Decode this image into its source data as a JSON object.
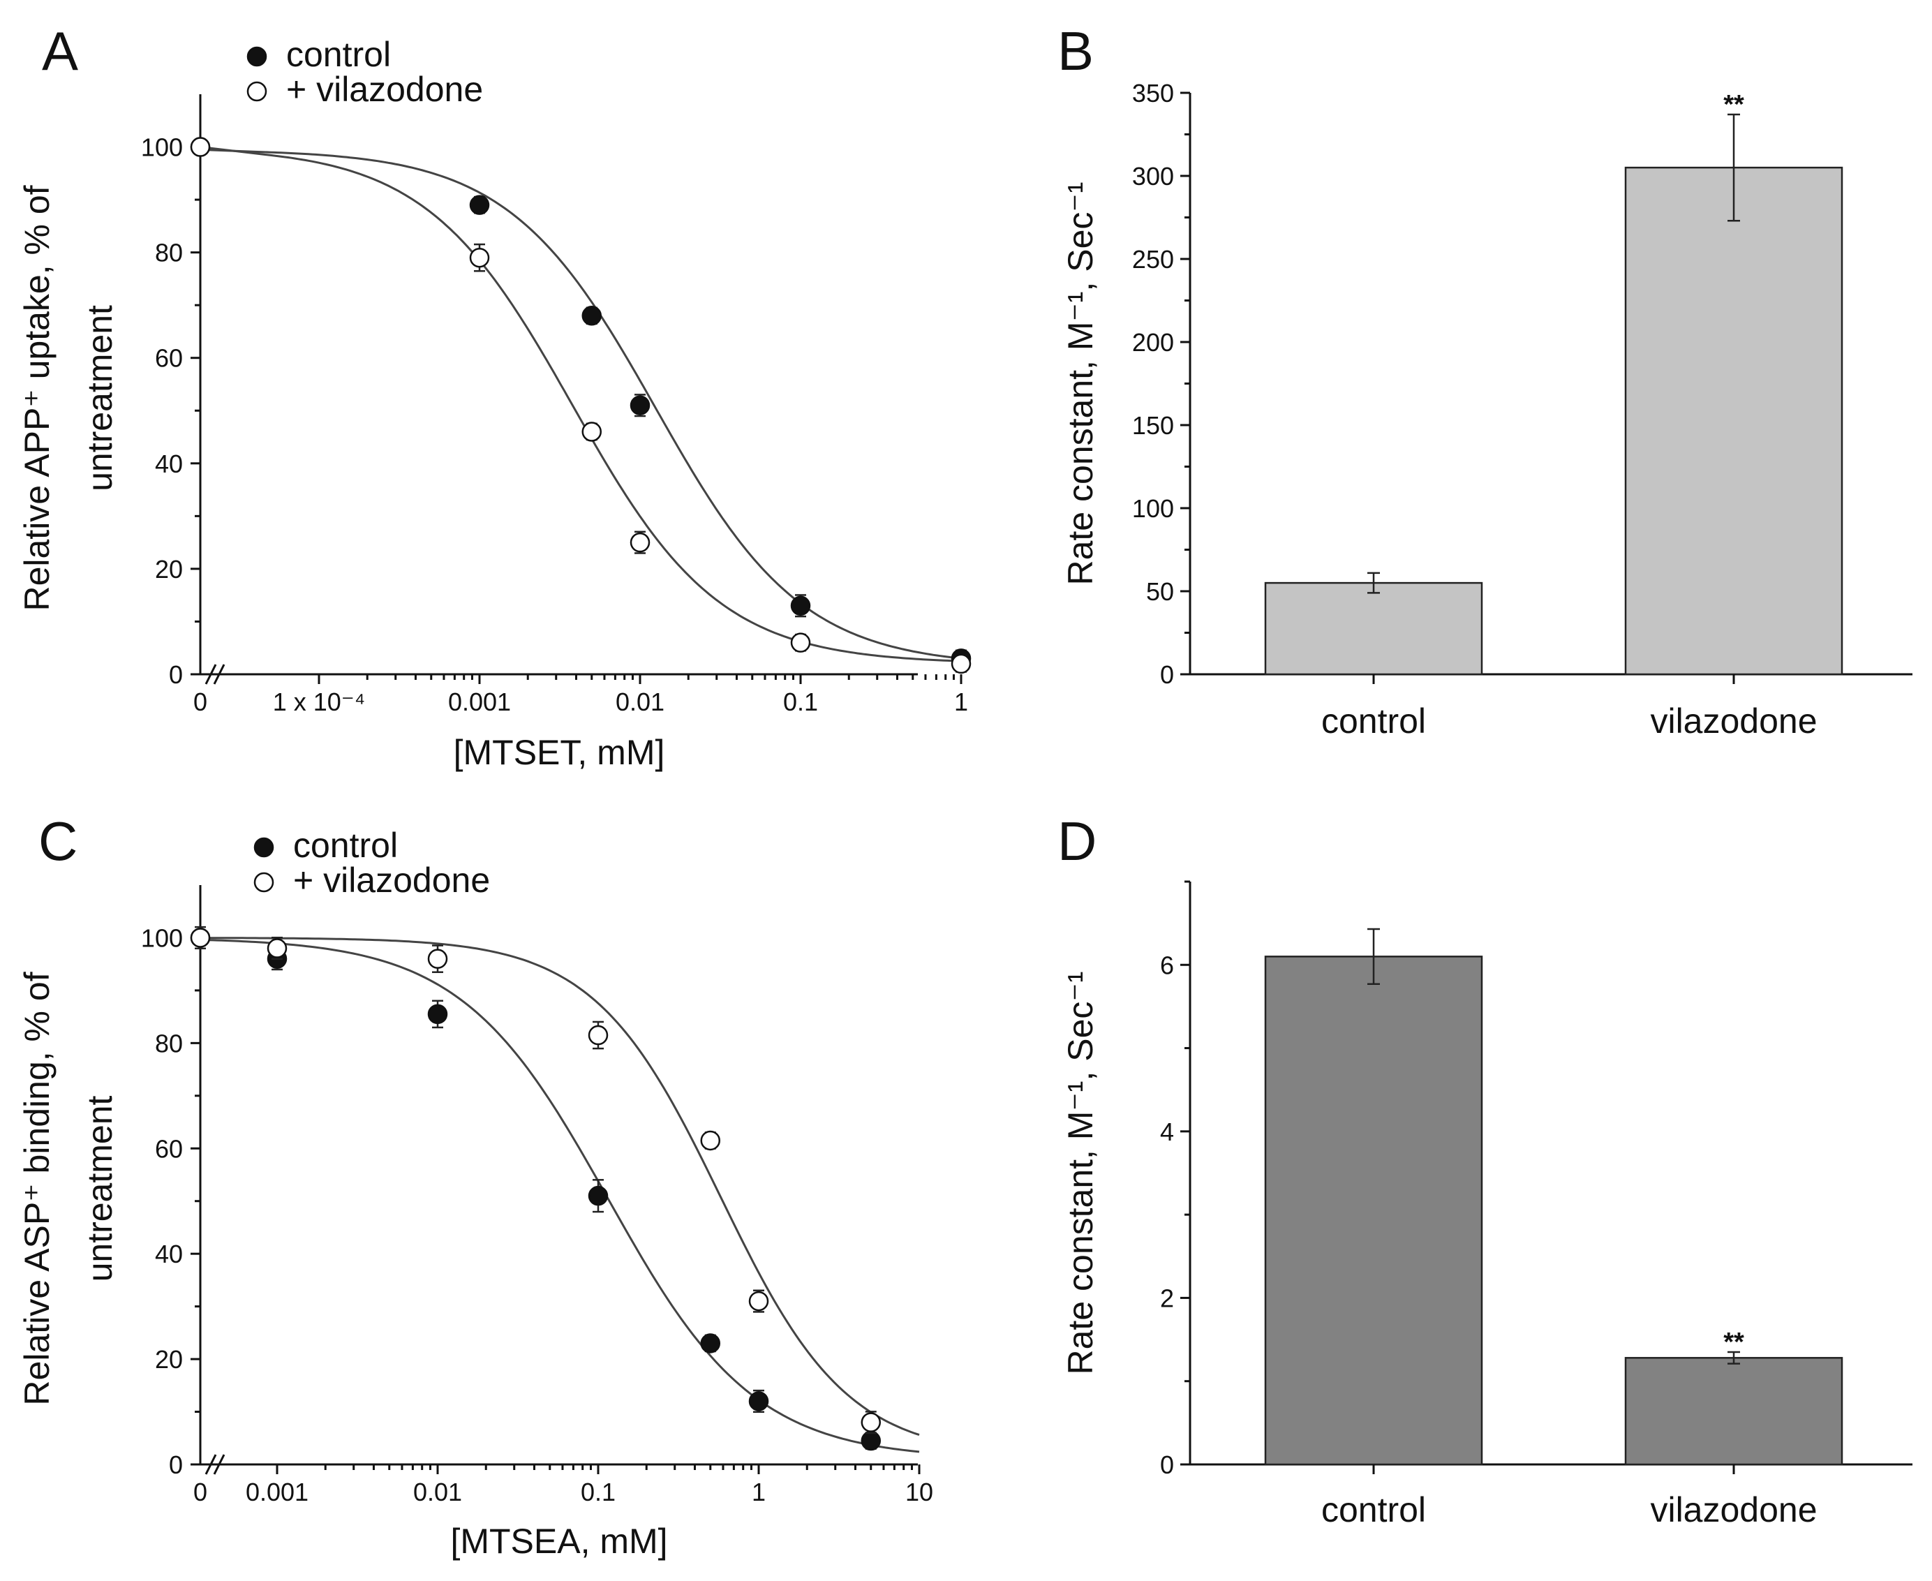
{
  "chart_data": [
    {
      "id": "A",
      "type": "scatter",
      "panel_label": "A",
      "xlabel": "[MTSET, mM]",
      "ylabel_lines": [
        "Relative APP⁺ uptake, % of",
        "untreatment"
      ],
      "x_scale": "log",
      "x_ticks": [
        {
          "value": 0,
          "label": "0",
          "is_zero": true
        },
        {
          "value": 0.0001,
          "label": "1 x 10⁻⁴"
        },
        {
          "value": 0.001,
          "label": "0.001"
        },
        {
          "value": 0.01,
          "label": "0.01"
        },
        {
          "value": 0.1,
          "label": "0.1"
        },
        {
          "value": 1,
          "label": "1"
        }
      ],
      "y_ticks": [
        {
          "value": 0,
          "label": "0"
        },
        {
          "value": 20,
          "label": "20"
        },
        {
          "value": 40,
          "label": "40"
        },
        {
          "value": 60,
          "label": "60"
        },
        {
          "value": 80,
          "label": "80"
        },
        {
          "value": 100,
          "label": "100"
        }
      ],
      "ylim": [
        0,
        110
      ],
      "legend_position": "top-left",
      "series": [
        {
          "name": "control",
          "marker": "filled-circle",
          "points": [
            {
              "x": 0,
              "y": 100,
              "err": 0
            },
            {
              "x": 0.001,
              "y": 89,
              "err": 1
            },
            {
              "x": 0.005,
              "y": 68,
              "err": 1
            },
            {
              "x": 0.01,
              "y": 51,
              "err": 1.5
            },
            {
              "x": 0.1,
              "y": 13,
              "err": 1.5
            },
            {
              "x": 1,
              "y": 3,
              "err": 1
            }
          ],
          "fit": {
            "top": 99.5,
            "bottom": 1.5,
            "ic50": 0.0125,
            "hill": 0.95
          }
        },
        {
          "name": "+ vilazodone",
          "marker": "open-circle",
          "points": [
            {
              "x": 0,
              "y": 100,
              "err": 0
            },
            {
              "x": 0.001,
              "y": 79,
              "err": 2
            },
            {
              "x": 0.005,
              "y": 46,
              "err": 1
            },
            {
              "x": 0.01,
              "y": 25,
              "err": 1.5
            },
            {
              "x": 0.1,
              "y": 6,
              "err": 1
            },
            {
              "x": 1,
              "y": 2,
              "err": 1
            }
          ],
          "fit": {
            "top": 100,
            "bottom": 2,
            "ic50": 0.0038,
            "hill": 0.95
          }
        }
      ]
    },
    {
      "id": "B",
      "type": "bar",
      "panel_label": "B",
      "ylabel": "Rate constant, M⁻¹, Sec⁻¹",
      "ylim": [
        0,
        350
      ],
      "y_ticks": [
        0,
        50,
        100,
        150,
        200,
        250,
        300,
        350
      ],
      "categories": [
        "control",
        "vilazodone"
      ],
      "values": [
        55,
        305
      ],
      "errors": [
        6,
        32
      ],
      "significance": [
        "",
        "**"
      ],
      "bar_color": "#c4c4c4"
    },
    {
      "id": "C",
      "type": "scatter",
      "panel_label": "C",
      "xlabel": "[MTSEA, mM]",
      "ylabel_lines": [
        "Relative ASP⁺ binding, % of",
        "untreatment"
      ],
      "x_scale": "log",
      "x_ticks": [
        {
          "value": 0,
          "label": "0",
          "is_zero": true
        },
        {
          "value": 0.001,
          "label": "0.001"
        },
        {
          "value": 0.01,
          "label": "0.01"
        },
        {
          "value": 0.1,
          "label": "0.1"
        },
        {
          "value": 1,
          "label": "1"
        },
        {
          "value": 10,
          "label": "10"
        }
      ],
      "y_ticks": [
        {
          "value": 0,
          "label": "0"
        },
        {
          "value": 20,
          "label": "20"
        },
        {
          "value": 40,
          "label": "40"
        },
        {
          "value": 60,
          "label": "60"
        },
        {
          "value": 80,
          "label": "80"
        },
        {
          "value": 100,
          "label": "100"
        }
      ],
      "ylim": [
        0,
        110
      ],
      "legend_position": "top-left",
      "series": [
        {
          "name": "control",
          "marker": "filled-circle",
          "points": [
            {
              "x": 0,
              "y": 100,
              "err": 0
            },
            {
              "x": 0.001,
              "y": 96,
              "err": 1.5
            },
            {
              "x": 0.01,
              "y": 85.5,
              "err": 2
            },
            {
              "x": 0.1,
              "y": 51,
              "err": 2.5
            },
            {
              "x": 0.5,
              "y": 23,
              "err": 1
            },
            {
              "x": 1,
              "y": 12,
              "err": 1.5
            },
            {
              "x": 5,
              "y": 4.5,
              "err": 1
            }
          ],
          "fit": {
            "top": 100,
            "bottom": 1,
            "ic50": 0.115,
            "hill": 0.95
          }
        },
        {
          "name": "+ vilazodone",
          "marker": "open-circle",
          "points": [
            {
              "x": 0,
              "y": 100,
              "err": 1.5
            },
            {
              "x": 0.001,
              "y": 98,
              "err": 1.5
            },
            {
              "x": 0.01,
              "y": 96,
              "err": 2
            },
            {
              "x": 0.1,
              "y": 81.5,
              "err": 2
            },
            {
              "x": 0.5,
              "y": 61.5,
              "err": 1
            },
            {
              "x": 1,
              "y": 31,
              "err": 1.5
            },
            {
              "x": 5,
              "y": 8,
              "err": 1.5
            }
          ],
          "fit": {
            "top": 100,
            "bottom": 1.5,
            "ic50": 0.58,
            "hill": 1.1
          }
        }
      ]
    },
    {
      "id": "D",
      "type": "bar",
      "panel_label": "D",
      "ylabel": "Rate constant, M⁻¹, Sec⁻¹",
      "ylim": [
        0,
        7
      ],
      "y_ticks": [
        0,
        2,
        4,
        6
      ],
      "categories": [
        "control",
        "vilazodone"
      ],
      "values": [
        6.1,
        1.28
      ],
      "errors": [
        0.33,
        0.07
      ],
      "significance": [
        "",
        "**"
      ],
      "bar_color": "#828282"
    }
  ]
}
